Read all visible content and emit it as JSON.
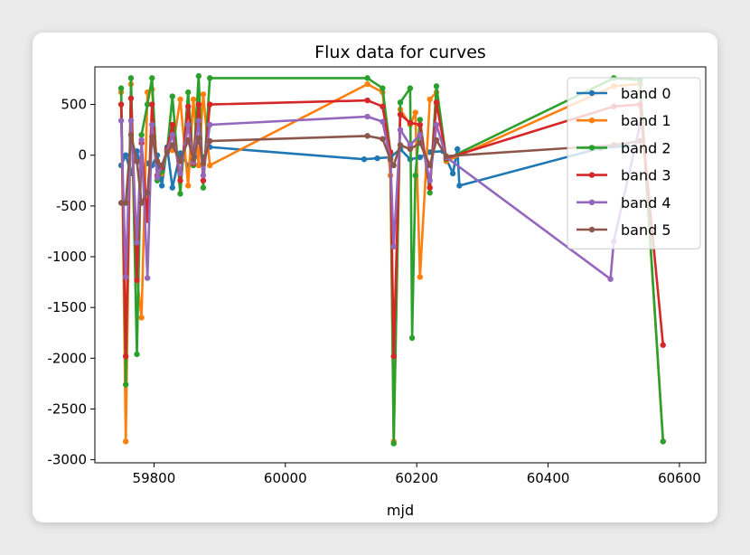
{
  "chart_data": {
    "type": "line",
    "title": "Flux data for curves",
    "xlabel": "mjd",
    "ylabel": "",
    "xlim": [
      59710,
      60640
    ],
    "ylim": [
      -3030,
      870
    ],
    "xticks": [
      59800,
      60000,
      60200,
      60400,
      60600
    ],
    "yticks": [
      500,
      0,
      -500,
      -1000,
      -1500,
      -2000,
      -2500,
      -3000
    ],
    "grid": false,
    "legend": "top-right",
    "colors": [
      "#1f77b4",
      "#ff7f0e",
      "#2ca02c",
      "#d62728",
      "#9467bd",
      "#8c564b"
    ],
    "series": [
      {
        "name": "band 0",
        "x": [
          59750,
          59757,
          59765,
          59774,
          59781,
          59790,
          59797,
          59805,
          59812,
          59820,
          59828,
          59840,
          59852,
          59860,
          59868,
          59875,
          59885,
          60120,
          60140,
          60160,
          60175,
          60190,
          60205,
          60220,
          60240,
          60255,
          60262,
          60265,
          60480,
          60520
        ],
        "y": [
          -100,
          0,
          -180,
          40,
          -150,
          -80,
          -100,
          0,
          -300,
          80,
          -320,
          20,
          -100,
          -80,
          40,
          -20,
          80,
          -40,
          -30,
          -20,
          60,
          -40,
          -20,
          30,
          40,
          -180,
          60,
          -300,
          70,
          90
        ]
      },
      {
        "name": "band 1",
        "x": [
          59750,
          59757,
          59765,
          59774,
          59781,
          59790,
          59797,
          59805,
          59812,
          59820,
          59828,
          59840,
          59852,
          59860,
          59868,
          59875,
          59885,
          60125,
          60148,
          60160,
          60165,
          60175,
          60190,
          60198,
          60205,
          60220,
          60230,
          60245,
          60500,
          60540,
          60575
        ],
        "y": [
          620,
          -2820,
          700,
          -1200,
          -1600,
          620,
          650,
          -200,
          -180,
          40,
          50,
          550,
          -300,
          550,
          -100,
          600,
          -100,
          700,
          620,
          -200,
          -2820,
          450,
          300,
          420,
          -1200,
          550,
          620,
          -60,
          680,
          700,
          -2820
        ]
      },
      {
        "name": "band 2",
        "x": [
          59750,
          59757,
          59765,
          59774,
          59781,
          59790,
          59797,
          59805,
          59812,
          59820,
          59828,
          59840,
          59852,
          59860,
          59868,
          59875,
          59885,
          60125,
          60148,
          60160,
          60165,
          60175,
          60190,
          60193,
          60198,
          60205,
          60220,
          60230,
          60245,
          60500,
          60540,
          60575
        ],
        "y": [
          660,
          -2260,
          760,
          -1960,
          200,
          500,
          760,
          -250,
          -160,
          50,
          580,
          -380,
          620,
          -100,
          780,
          -320,
          760,
          760,
          660,
          30,
          -2840,
          520,
          660,
          -1800,
          -200,
          350,
          -370,
          680,
          -40,
          760,
          740,
          -2820
        ]
      },
      {
        "name": "band 3",
        "x": [
          59750,
          59757,
          59765,
          59774,
          59781,
          59790,
          59797,
          59805,
          59812,
          59820,
          59828,
          59840,
          59852,
          59860,
          59868,
          59875,
          59885,
          60125,
          60148,
          60160,
          60165,
          60175,
          60190,
          60205,
          60220,
          60230,
          60245,
          60500,
          60540,
          60575
        ],
        "y": [
          500,
          -1980,
          560,
          -1230,
          120,
          -640,
          500,
          -200,
          -120,
          60,
          300,
          -250,
          480,
          -80,
          500,
          -250,
          500,
          540,
          480,
          30,
          -1980,
          400,
          320,
          300,
          -320,
          520,
          -30,
          480,
          500,
          -1870
        ]
      },
      {
        "name": "band 4",
        "x": [
          59750,
          59757,
          59765,
          59774,
          59781,
          59790,
          59797,
          59805,
          59812,
          59820,
          59828,
          59840,
          59852,
          59860,
          59868,
          59875,
          59885,
          60125,
          60148,
          60160,
          60165,
          60175,
          60190,
          60205,
          60220,
          60230,
          60245,
          60495,
          60500,
          60540
        ],
        "y": [
          340,
          -1200,
          340,
          -860,
          150,
          -1210,
          300,
          -220,
          -100,
          40,
          200,
          -180,
          300,
          -70,
          340,
          -200,
          300,
          380,
          330,
          -40,
          -900,
          250,
          100,
          200,
          -250,
          300,
          -20,
          -1220,
          -850,
          300
        ]
      },
      {
        "name": "band 5",
        "x": [
          59750,
          59757,
          59765,
          59774,
          59781,
          59790,
          59797,
          59805,
          59812,
          59820,
          59828,
          59840,
          59852,
          59860,
          59868,
          59875,
          59885,
          60125,
          60148,
          60160,
          60165,
          60175,
          60190,
          60205,
          60220,
          60230,
          60245,
          60500,
          60540
        ],
        "y": [
          -470,
          -470,
          200,
          -60,
          -470,
          -370,
          180,
          -60,
          -100,
          30,
          100,
          -60,
          150,
          -40,
          170,
          -80,
          140,
          190,
          160,
          -40,
          -100,
          100,
          60,
          120,
          -100,
          150,
          -10,
          100,
          140
        ]
      }
    ]
  }
}
